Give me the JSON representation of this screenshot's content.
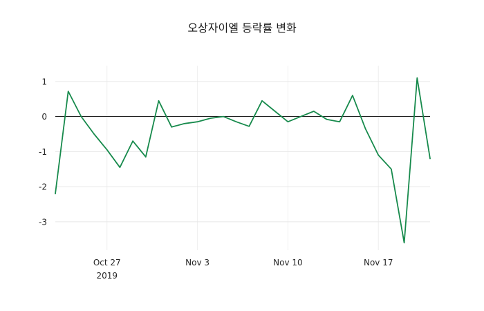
{
  "chart_data": {
    "type": "line",
    "title": "오상자이엘 등락률 변화",
    "xlabel": "",
    "ylabel": "",
    "ylim": [
      -3.81,
      1.45
    ],
    "yticks": [
      1,
      0,
      -1,
      -2,
      -3
    ],
    "xticks": [
      {
        "index": 4,
        "label": "Oct 27",
        "sublabel": "2019"
      },
      {
        "index": 11,
        "label": "Nov 3",
        "sublabel": ""
      },
      {
        "index": 18,
        "label": "Nov 10",
        "sublabel": ""
      },
      {
        "index": 25,
        "label": "Nov 17",
        "sublabel": ""
      }
    ],
    "dates": [
      "2019-10-23",
      "2019-10-24",
      "2019-10-25",
      "2019-10-26",
      "2019-10-27",
      "2019-10-28",
      "2019-10-29",
      "2019-10-30",
      "2019-10-31",
      "2019-11-01",
      "2019-11-02",
      "2019-11-03",
      "2019-11-04",
      "2019-11-05",
      "2019-11-06",
      "2019-11-07",
      "2019-11-08",
      "2019-11-09",
      "2019-11-10",
      "2019-11-11",
      "2019-11-12",
      "2019-11-13",
      "2019-11-14",
      "2019-11-15",
      "2019-11-16",
      "2019-11-17",
      "2019-11-18",
      "2019-11-19",
      "2019-11-20",
      "2019-11-21"
    ],
    "values": [
      -2.2,
      0.72,
      0.0,
      -0.5,
      -0.95,
      -1.45,
      -0.7,
      -1.15,
      0.45,
      -0.3,
      -0.2,
      -0.15,
      -0.05,
      0.0,
      -0.15,
      -0.28,
      0.45,
      0.15,
      -0.15,
      0.0,
      0.15,
      -0.08,
      -0.15,
      0.6,
      -0.35,
      -1.1,
      -1.5,
      -3.6,
      1.1,
      -1.2
    ],
    "grid": true,
    "legend": "none",
    "line_color": "#178a4c",
    "grid_color": "#e7e7e7",
    "zero_line_color": "#000000",
    "background_color": "#ffffff"
  }
}
